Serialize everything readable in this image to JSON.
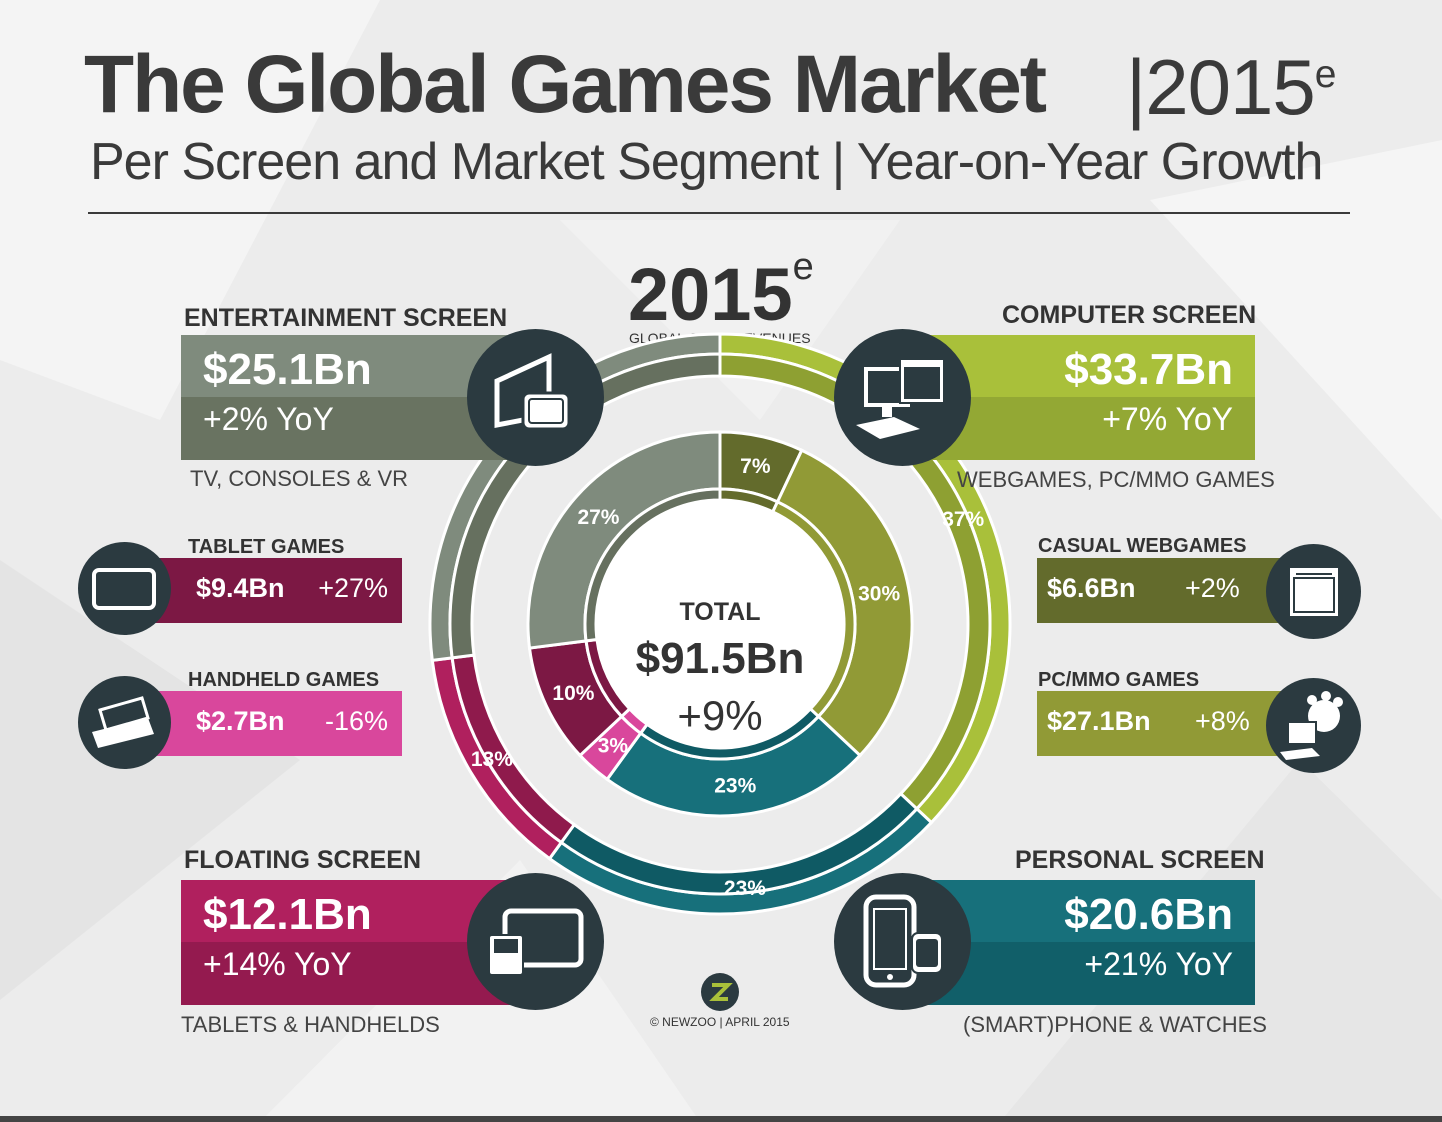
{
  "title": "The Global Games Market",
  "title_year": "|2015",
  "title_year_sup": "e",
  "subtitle": "Per Screen and Market Segment | Year-on-Year Growth",
  "center_year": "2015",
  "center_year_sup": "e",
  "center_caption": "GLOBAL GAME REVENUES",
  "total_label": "TOTAL",
  "total_value": "$91.5Bn",
  "total_growth": "+9%",
  "footer": "© NEWZOO | APRIL 2015",
  "colors": {
    "entertainment": "#7f8b7d",
    "entertainment_dark": "#66705f",
    "computer": "#a9c03a",
    "computer_dark": "#8ea032",
    "casual": "#636b2c",
    "pcmmo": "#919a36",
    "personal": "#17707b",
    "personal_dark": "#0f5a64",
    "floating": "#b0205e",
    "floating_dark": "#8f1a4c",
    "tablet": "#7c1844",
    "handheld": "#d9479c",
    "icon_circle": "#2b3a40"
  },
  "segments": {
    "entertainment": {
      "head": "ENTERTAINMENT SCREEN",
      "amount": "$25.1Bn",
      "yoy": "+2% YoY",
      "sub": "TV, CONSOLES & VR",
      "icon": "tv-vr-icon"
    },
    "computer": {
      "head": "COMPUTER SCREEN",
      "amount": "$33.7Bn",
      "yoy": "+7% YoY",
      "sub": "WEBGAMES, PC/MMO GAMES",
      "icon": "desktop-computer-icon"
    },
    "floating": {
      "head": "FLOATING SCREEN",
      "amount": "$12.1Bn",
      "yoy": "+14% YoY",
      "sub": "TABLETS & HANDHELDS",
      "icon": "tablet-handheld-icon"
    },
    "personal": {
      "head": "PERSONAL SCREEN",
      "amount": "$20.6Bn",
      "yoy": "+21% YoY",
      "sub": "(SMART)PHONE & WATCHES",
      "icon": "phone-watch-icon"
    }
  },
  "subsegments": {
    "tablet": {
      "head": "TABLET GAMES",
      "value": "$9.4Bn",
      "growth": "+27%",
      "icon": "tablet-icon"
    },
    "handheld": {
      "head": "HANDHELD GAMES",
      "value": "$2.7Bn",
      "growth": "-16%",
      "icon": "handheld-console-icon"
    },
    "casual": {
      "head": "CASUAL WEBGAMES",
      "value": "$6.6Bn",
      "growth": "+2%",
      "icon": "browser-game-icon"
    },
    "pcmmo": {
      "head": "PC/MMO GAMES",
      "value": "$27.1Bn",
      "growth": "+8%",
      "icon": "pc-mmo-icon"
    }
  },
  "chart_data": [
    {
      "type": "pie",
      "ring": "outer",
      "title": "",
      "categories": [
        "Computer Screen",
        "Personal Screen",
        "Floating Screen",
        "Entertainment Screen"
      ],
      "values": [
        37,
        23,
        13,
        27
      ],
      "labels": [
        "37%",
        "23%",
        "13%",
        "27%"
      ]
    },
    {
      "type": "pie",
      "ring": "inner",
      "title": "",
      "categories": [
        "Casual Webgames",
        "PC/MMO Games",
        "Smartphone & Watches",
        "Handheld Games",
        "Tablet Games",
        "TV, Consoles & VR"
      ],
      "values": [
        7,
        30,
        23,
        3,
        10,
        27
      ],
      "labels": [
        "7%",
        "30%",
        "23%",
        "3%",
        "10%",
        "27%"
      ]
    }
  ]
}
